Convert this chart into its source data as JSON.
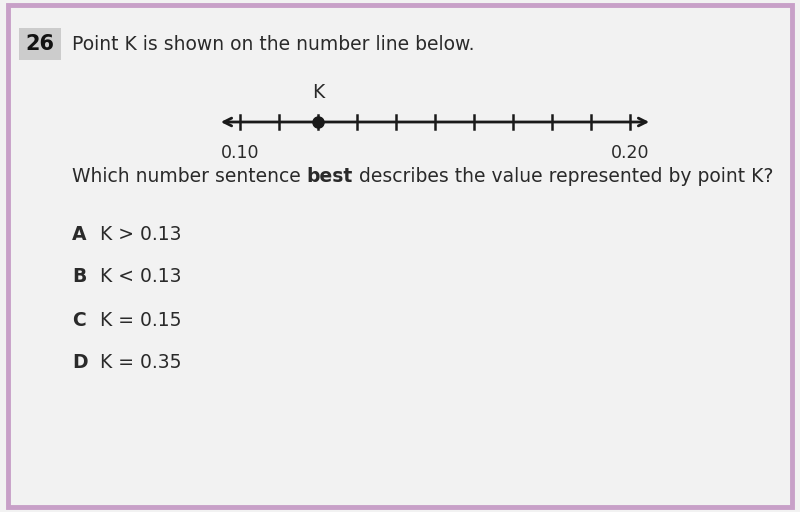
{
  "bg_color": "#f2f2f2",
  "border_color": "#c8a0c8",
  "question_number": "26",
  "question_text": "Point K is shown on the number line below.",
  "sub_question_plain": "Which number sentence ",
  "sub_question_bold": "best",
  "sub_question_rest": " describes the value represented by point K?",
  "number_line_ticks": 10,
  "point_K_value": 0.12,
  "point_K_label": "K",
  "choices": [
    {
      "letter": "A",
      "text": "K > 0.13"
    },
    {
      "letter": "B",
      "text": "K < 0.13"
    },
    {
      "letter": "C",
      "text": "K = 0.15"
    },
    {
      "letter": "D",
      "text": "K = 0.35"
    }
  ],
  "line_color": "#1a1a1a",
  "point_color": "#1a1a1a",
  "text_color": "#2a2a2a",
  "font_size_question": 13.5,
  "font_size_choices": 13.5,
  "font_size_numbox": 15,
  "font_size_axis_label": 12.5
}
